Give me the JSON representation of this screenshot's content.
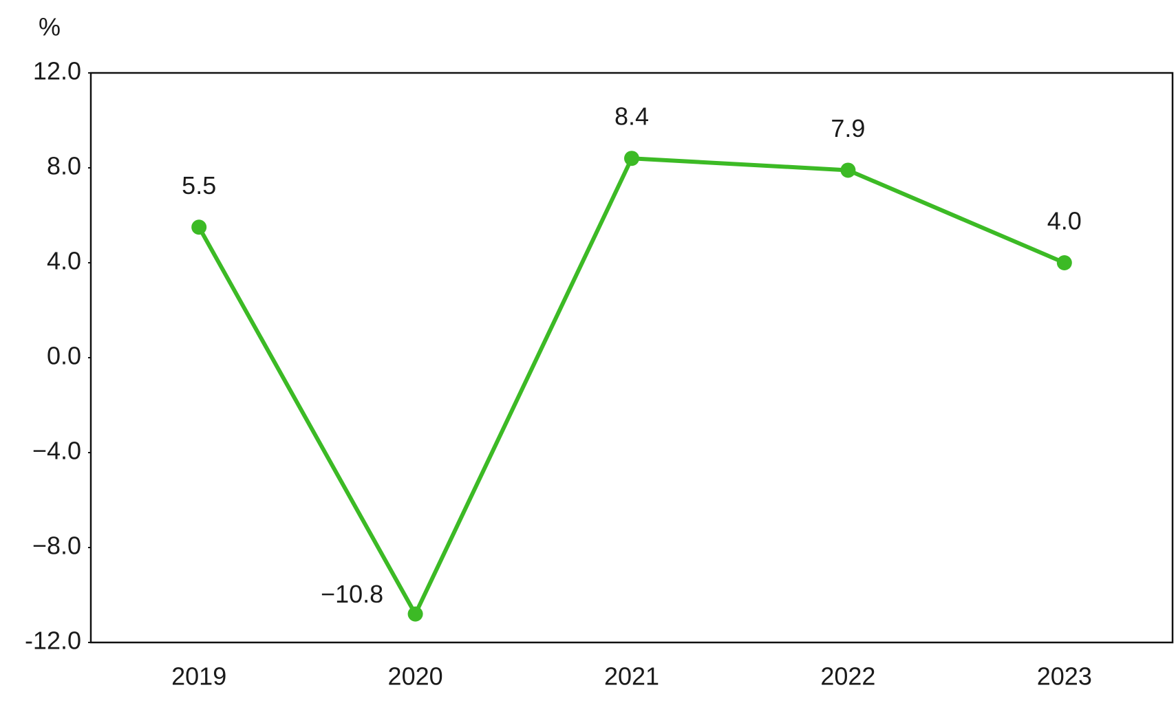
{
  "chart_data": {
    "type": "line",
    "y_label": "%",
    "categories": [
      "2019",
      "2020",
      "2021",
      "2022",
      "2023"
    ],
    "series": [
      {
        "color": "#3cba25",
        "values": [
          5.5,
          -10.8,
          8.4,
          7.9,
          4.0
        ],
        "value_labels": [
          "5.5",
          "−10.8",
          "8.4",
          "7.9",
          "4.0"
        ]
      }
    ],
    "ylim": [
      -12,
      12
    ],
    "yticks": [
      {
        "value": -12,
        "label": "-12.0"
      },
      {
        "value": -8,
        "label": "−8.0"
      },
      {
        "value": -4,
        "label": "−4.0"
      },
      {
        "value": 0,
        "label": "0.0"
      },
      {
        "value": 4,
        "label": "4.0"
      },
      {
        "value": 8,
        "label": "8.0"
      },
      {
        "value": 12,
        "label": "12.0"
      }
    ],
    "grid": false
  }
}
